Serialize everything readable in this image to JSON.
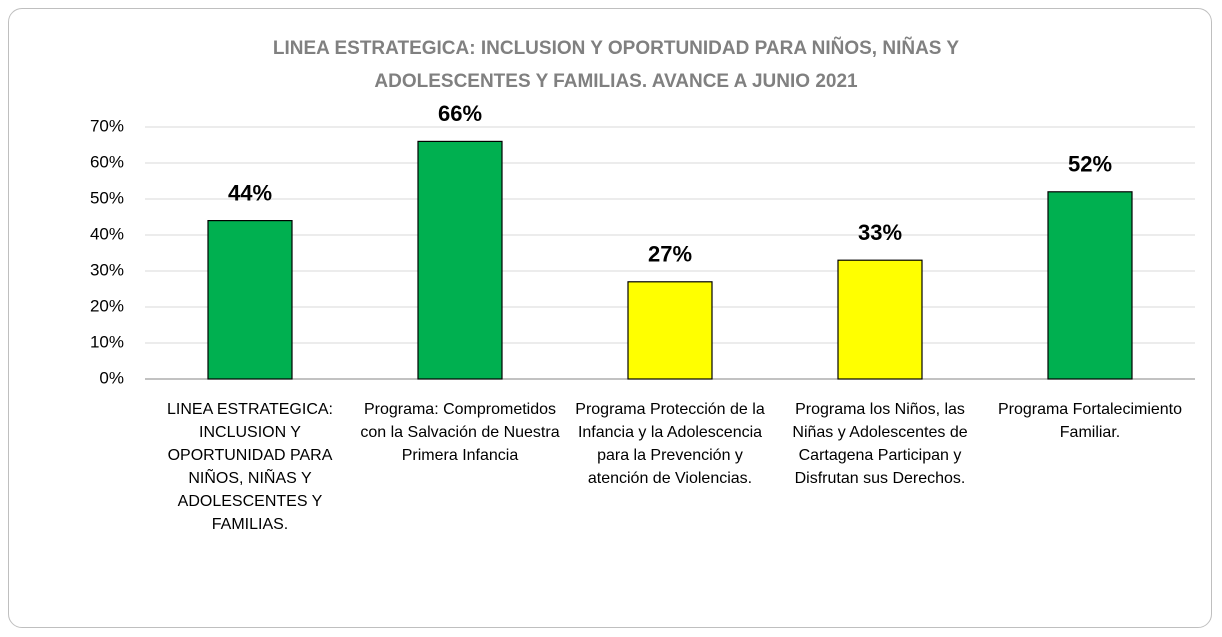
{
  "chart_data": {
    "type": "bar",
    "title": "LINEA ESTRATEGICA: INCLUSION Y OPORTUNIDAD PARA NIÑOS, NIÑAS Y ADOLESCENTES Y FAMILIAS. AVANCE A JUNIO 2021",
    "categories": [
      "LINEA ESTRATEGICA: INCLUSION Y OPORTUNIDAD PARA NIÑOS, NIÑAS Y ADOLESCENTES Y FAMILIAS.",
      "Programa: Comprometidos con la Salvación de Nuestra Primera Infancia",
      "Programa Protección de la Infancia y la Adolescencia para la Prevención y atención de Violencias.",
      "Programa los Niños, las Niñas y Adolescentes de Cartagena Participan y Disfrutan sus Derechos.",
      "Programa Fortalecimiento Familiar."
    ],
    "values": [
      44,
      66,
      27,
      33,
      52
    ],
    "value_labels": [
      "44%",
      "66%",
      "27%",
      "33%",
      "52%"
    ],
    "colors": [
      "#00b050",
      "#00b050",
      "#ffff00",
      "#ffff00",
      "#00b050"
    ],
    "ylim": [
      0,
      70
    ],
    "yticks": [
      {
        "value": 0,
        "label": "0%"
      },
      {
        "value": 10,
        "label": "10%"
      },
      {
        "value": 20,
        "label": "20%"
      },
      {
        "value": 30,
        "label": "30%"
      },
      {
        "value": 40,
        "label": "40%"
      },
      {
        "value": 50,
        "label": "50%"
      },
      {
        "value": 60,
        "label": "60%"
      },
      {
        "value": 70,
        "label": "70%"
      }
    ],
    "grid": true
  }
}
